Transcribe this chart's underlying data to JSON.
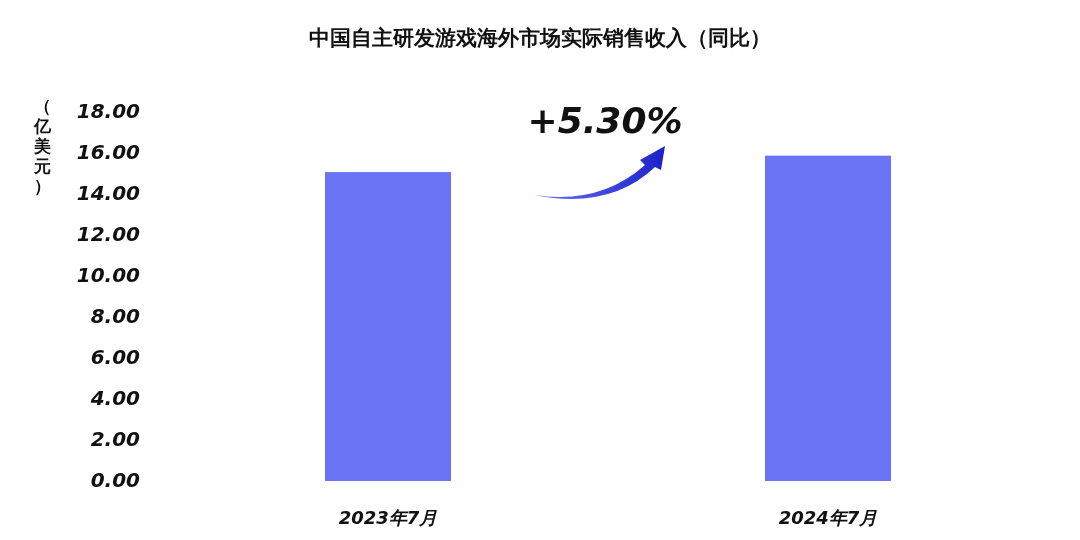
{
  "chart_data": {
    "type": "bar",
    "title": "中国自主研发游戏海外市场实际销售收入（同比）",
    "ylabel": "（亿美元）",
    "categories": [
      "2023年7月",
      "2024年7月"
    ],
    "values": [
      15.07,
      15.87
    ],
    "color": "#6a74f5",
    "ylim": [
      0,
      18
    ],
    "yticks": [
      {
        "value": 0,
        "label": "0.00"
      },
      {
        "value": 2,
        "label": "2.00"
      },
      {
        "value": 4,
        "label": "4.00"
      },
      {
        "value": 6,
        "label": "6.00"
      },
      {
        "value": 8,
        "label": "8.00"
      },
      {
        "value": 10,
        "label": "10.00"
      },
      {
        "value": 12,
        "label": "12.00"
      },
      {
        "value": 14,
        "label": "14.00"
      },
      {
        "value": 16,
        "label": "16.00"
      },
      {
        "value": 18,
        "label": "18.00"
      }
    ],
    "grid": false,
    "annotations": [
      "+5.30%"
    ]
  }
}
